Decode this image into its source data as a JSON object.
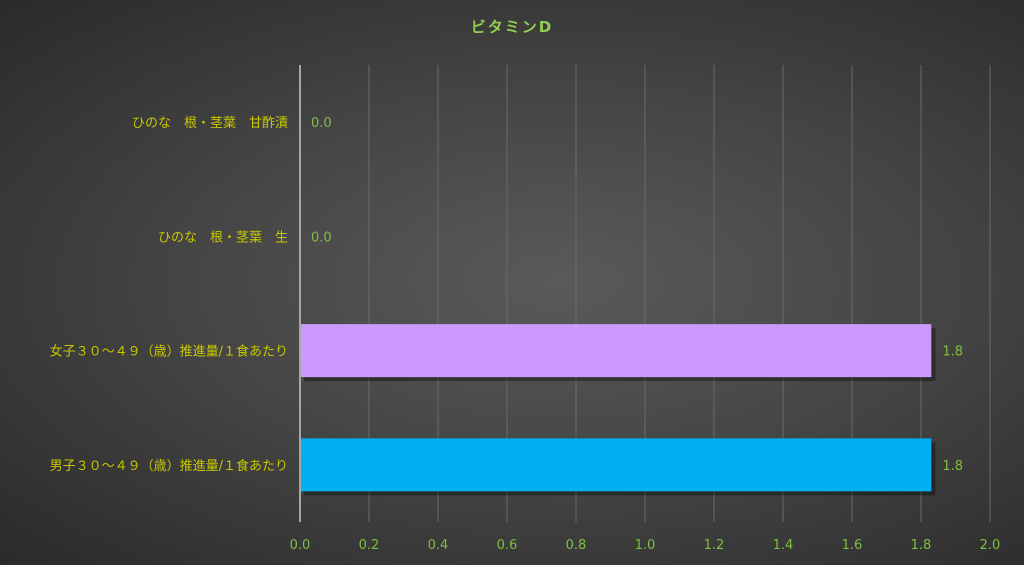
{
  "chart_data": {
    "type": "bar",
    "orientation": "horizontal",
    "title": "ビタミンD",
    "categories": [
      "ひのな　根・茎葉　甘酢漬",
      "ひのな　根・茎葉　生",
      "女子３０～４９（歳）推進量/１食あたり",
      "男子３０～４９（歳）推進量/１食あたり"
    ],
    "values": [
      0.0,
      0.0,
      1.83,
      1.83
    ],
    "data_labels": [
      "0.0",
      "0.0",
      "1.8",
      "1.8"
    ],
    "bar_colors": [
      "#cc99ff",
      "#cc99ff",
      "#cc99ff",
      "#00b0f0"
    ],
    "xlim": [
      0,
      2.0
    ],
    "xticks": [
      "0.0",
      "0.2",
      "0.4",
      "0.6",
      "0.8",
      "1.0",
      "1.2",
      "1.4",
      "1.6",
      "1.8",
      "2.0"
    ],
    "grid": "vertical",
    "legend": "none",
    "colors": {
      "title": "#92d050",
      "category_text": "#c8c800",
      "tick_text": "#7fbf3f",
      "grid": "#6a6a6a",
      "axis": "#a6a6a6"
    }
  }
}
